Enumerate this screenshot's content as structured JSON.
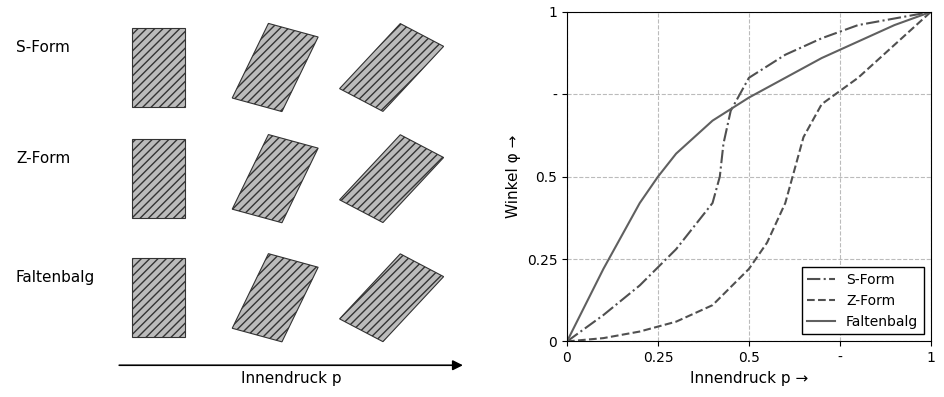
{
  "chart_data": {
    "type": "line",
    "x_label": "Innendruck p →",
    "y_label": "Winkel φ →",
    "xlim": [
      0,
      1
    ],
    "ylim": [
      0,
      1
    ],
    "xticks": [
      0,
      0.25,
      0.5,
      {
        "value": 0.75,
        "label": "-"
      },
      1
    ],
    "yticks": [
      0,
      0.25,
      0.5,
      {
        "value": 0.75,
        "label": "-"
      },
      1
    ],
    "grid": true,
    "legend": "lower right",
    "series": [
      {
        "name": "S-Form",
        "color": "#505050",
        "line_style": "dashdot",
        "x": [
          0,
          0.1,
          0.2,
          0.3,
          0.4,
          0.42,
          0.43,
          0.45,
          0.5,
          0.6,
          0.7,
          0.8,
          0.9,
          1
        ],
        "values": [
          0,
          0.08,
          0.17,
          0.28,
          0.42,
          0.5,
          0.6,
          0.7,
          0.8,
          0.87,
          0.92,
          0.96,
          0.98,
          1
        ]
      },
      {
        "name": "Z-Form",
        "color": "#505050",
        "line_style": "dashed",
        "x": [
          0,
          0.1,
          0.2,
          0.3,
          0.4,
          0.5,
          0.55,
          0.6,
          0.62,
          0.65,
          0.7,
          0.8,
          0.9,
          1
        ],
        "values": [
          0,
          0.01,
          0.03,
          0.06,
          0.11,
          0.22,
          0.3,
          0.42,
          0.5,
          0.62,
          0.72,
          0.8,
          0.9,
          1
        ]
      },
      {
        "name": "Faltenbalg",
        "color": "#606060",
        "line_style": "solid",
        "x": [
          0,
          0.1,
          0.2,
          0.25,
          0.3,
          0.4,
          0.5,
          0.6,
          0.7,
          0.8,
          0.9,
          1
        ],
        "values": [
          0,
          0.22,
          0.42,
          0.5,
          0.57,
          0.67,
          0.74,
          0.8,
          0.86,
          0.91,
          0.96,
          1
        ]
      }
    ]
  },
  "diagram": {
    "rows": [
      "S-Form",
      "Z-Form",
      "Faltenbalg"
    ],
    "arrow_label": "Innendruck p"
  }
}
